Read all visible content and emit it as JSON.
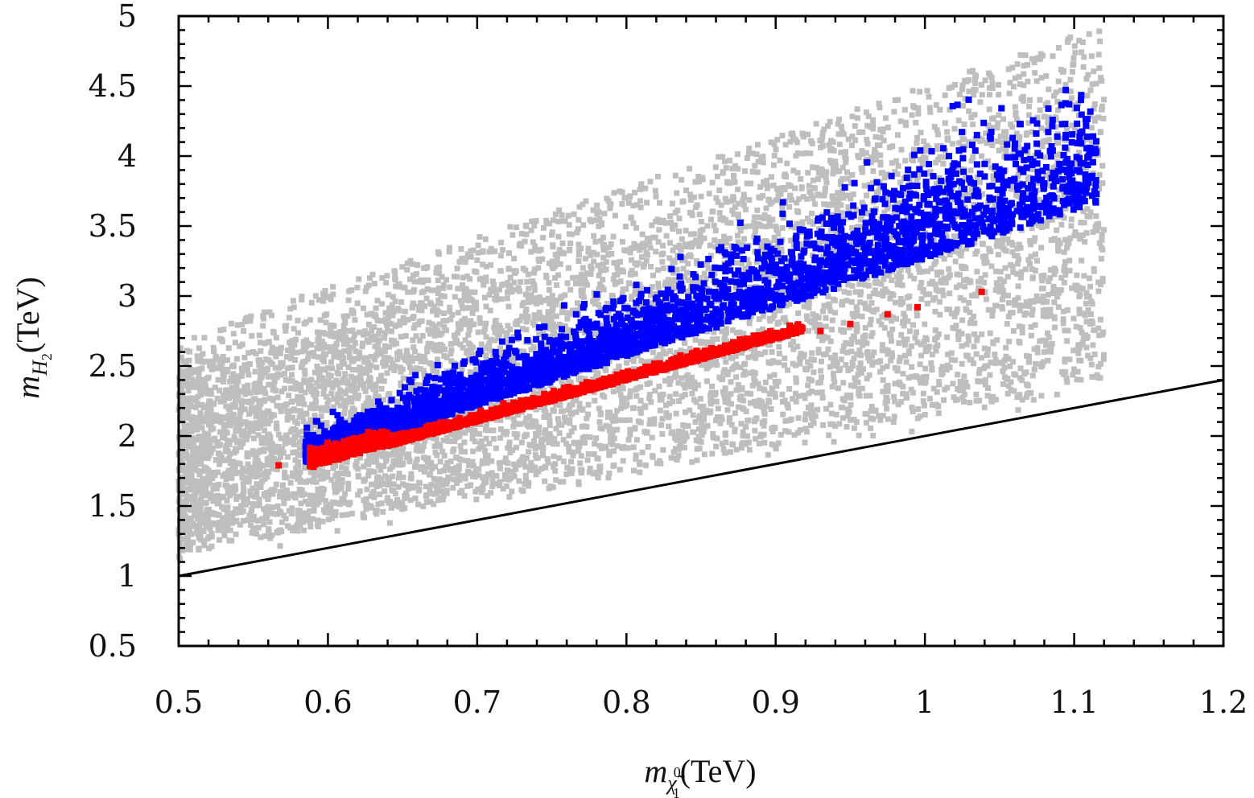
{
  "chart_data": {
    "type": "scatter",
    "title": "",
    "xlabel": {
      "symbol": "m",
      "subscript": "χ̃",
      "sub_superscript": "0",
      "sub_subscript": "1",
      "unit": "(TeV)"
    },
    "ylabel": {
      "symbol": "m",
      "subscript": "H",
      "sub_subscript": "2",
      "unit": "(TeV)"
    },
    "xlim": [
      0.5,
      1.2
    ],
    "ylim": [
      0.5,
      5
    ],
    "xticks": [
      "0.5",
      "0.6",
      "0.7",
      "0.8",
      "0.9",
      "1",
      "1.1",
      "1.2"
    ],
    "yticks": [
      "0.5",
      "1",
      "1.5",
      "2",
      "2.5",
      "3",
      "3.5",
      "4",
      "4.5",
      "5"
    ],
    "grid": false,
    "legend": "none",
    "colors": {
      "gray": "#bebebe",
      "blue": "#0000ff",
      "red": "#ff0000",
      "line": "#000000"
    },
    "reference_line": {
      "type": "line",
      "slope": 2,
      "intercept": 0,
      "x": [
        0.5,
        1.2
      ],
      "y": [
        1.0,
        2.4
      ]
    },
    "series": [
      {
        "color": "gray",
        "sample_points": [
          [
            0.5,
            1.2
          ],
          [
            0.5,
            2.4
          ],
          [
            0.52,
            1.25
          ],
          [
            0.52,
            2.5
          ],
          [
            0.55,
            1.3
          ],
          [
            0.55,
            2.5
          ],
          [
            0.6,
            1.4
          ],
          [
            0.6,
            2.7
          ],
          [
            0.65,
            1.5
          ],
          [
            0.65,
            3.0
          ],
          [
            0.7,
            1.6
          ],
          [
            0.7,
            3.2
          ],
          [
            0.75,
            1.8
          ],
          [
            0.75,
            3.3
          ],
          [
            0.8,
            1.9
          ],
          [
            0.8,
            3.6
          ],
          [
            0.85,
            2.0
          ],
          [
            0.85,
            3.8
          ],
          [
            0.9,
            2.2
          ],
          [
            0.9,
            4.0
          ],
          [
            0.95,
            2.4
          ],
          [
            0.95,
            4.2
          ],
          [
            1.0,
            2.5
          ],
          [
            1.0,
            4.3
          ],
          [
            1.05,
            2.6
          ],
          [
            1.05,
            4.7
          ],
          [
            1.1,
            3.0
          ],
          [
            1.1,
            4.9
          ],
          [
            1.12,
            3.2
          ],
          [
            1.12,
            4.7
          ]
        ]
      },
      {
        "color": "blue",
        "sample_points": [
          [
            0.58,
            1.8
          ],
          [
            0.59,
            1.9
          ],
          [
            0.6,
            2.0
          ],
          [
            0.65,
            2.2
          ],
          [
            0.7,
            2.35
          ],
          [
            0.75,
            2.55
          ],
          [
            0.8,
            2.75
          ],
          [
            0.85,
            2.95
          ],
          [
            0.9,
            3.1
          ],
          [
            0.95,
            3.25
          ],
          [
            1.0,
            3.35
          ],
          [
            1.05,
            3.5
          ],
          [
            1.08,
            3.7
          ],
          [
            1.1,
            3.8
          ],
          [
            1.115,
            3.85
          ],
          [
            1.115,
            3.6
          ]
        ]
      },
      {
        "color": "red",
        "sample_points": [
          [
            0.567,
            1.79
          ],
          [
            0.59,
            1.78
          ],
          [
            0.6,
            1.82
          ],
          [
            0.65,
            1.98
          ],
          [
            0.7,
            2.15
          ],
          [
            0.75,
            2.3
          ],
          [
            0.8,
            2.45
          ],
          [
            0.85,
            2.58
          ],
          [
            0.9,
            2.7
          ],
          [
            0.93,
            2.75
          ],
          [
            0.95,
            2.8
          ],
          [
            0.975,
            2.87
          ],
          [
            0.995,
            2.92
          ],
          [
            1.038,
            3.03
          ]
        ]
      }
    ]
  }
}
